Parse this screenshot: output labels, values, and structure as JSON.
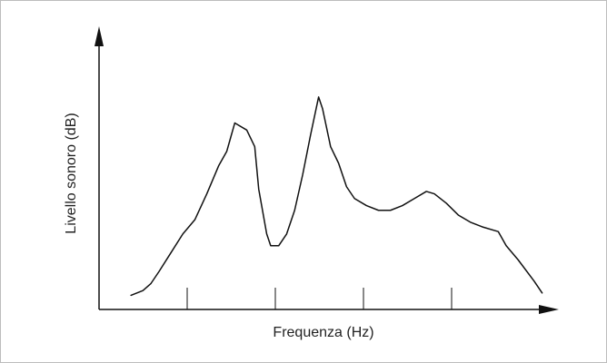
{
  "chart_data": {
    "type": "line",
    "title": "",
    "xlabel": "Frequenza (Hz)",
    "ylabel": "Livello sonoro (dB)",
    "x_ticks": 4,
    "grid": false,
    "legend": "none",
    "colors": {
      "line": "#111111",
      "axis": "#111111",
      "frame": "#bdbdbd"
    },
    "series": [
      {
        "points": [
          [
            0.08,
            0.06
          ],
          [
            0.11,
            0.08
          ],
          [
            0.13,
            0.11
          ],
          [
            0.15,
            0.16
          ],
          [
            0.18,
            0.24
          ],
          [
            0.21,
            0.32
          ],
          [
            0.24,
            0.38
          ],
          [
            0.27,
            0.49
          ],
          [
            0.3,
            0.61
          ],
          [
            0.32,
            0.67
          ],
          [
            0.34,
            0.79
          ],
          [
            0.37,
            0.76
          ],
          [
            0.39,
            0.69
          ],
          [
            0.4,
            0.51
          ],
          [
            0.42,
            0.32
          ],
          [
            0.43,
            0.27
          ],
          [
            0.45,
            0.27
          ],
          [
            0.47,
            0.32
          ],
          [
            0.49,
            0.42
          ],
          [
            0.51,
            0.57
          ],
          [
            0.53,
            0.74
          ],
          [
            0.55,
            0.9
          ],
          [
            0.56,
            0.85
          ],
          [
            0.58,
            0.69
          ],
          [
            0.6,
            0.62
          ],
          [
            0.62,
            0.52
          ],
          [
            0.64,
            0.47
          ],
          [
            0.67,
            0.44
          ],
          [
            0.7,
            0.42
          ],
          [
            0.73,
            0.42
          ],
          [
            0.76,
            0.44
          ],
          [
            0.79,
            0.47
          ],
          [
            0.82,
            0.5
          ],
          [
            0.84,
            0.49
          ],
          [
            0.87,
            0.45
          ],
          [
            0.9,
            0.4
          ],
          [
            0.93,
            0.37
          ],
          [
            0.96,
            0.35
          ],
          [
            1.0,
            0.33
          ],
          [
            1.02,
            0.27
          ],
          [
            1.05,
            0.21
          ],
          [
            1.09,
            0.12
          ],
          [
            1.11,
            0.07
          ]
        ]
      }
    ]
  }
}
